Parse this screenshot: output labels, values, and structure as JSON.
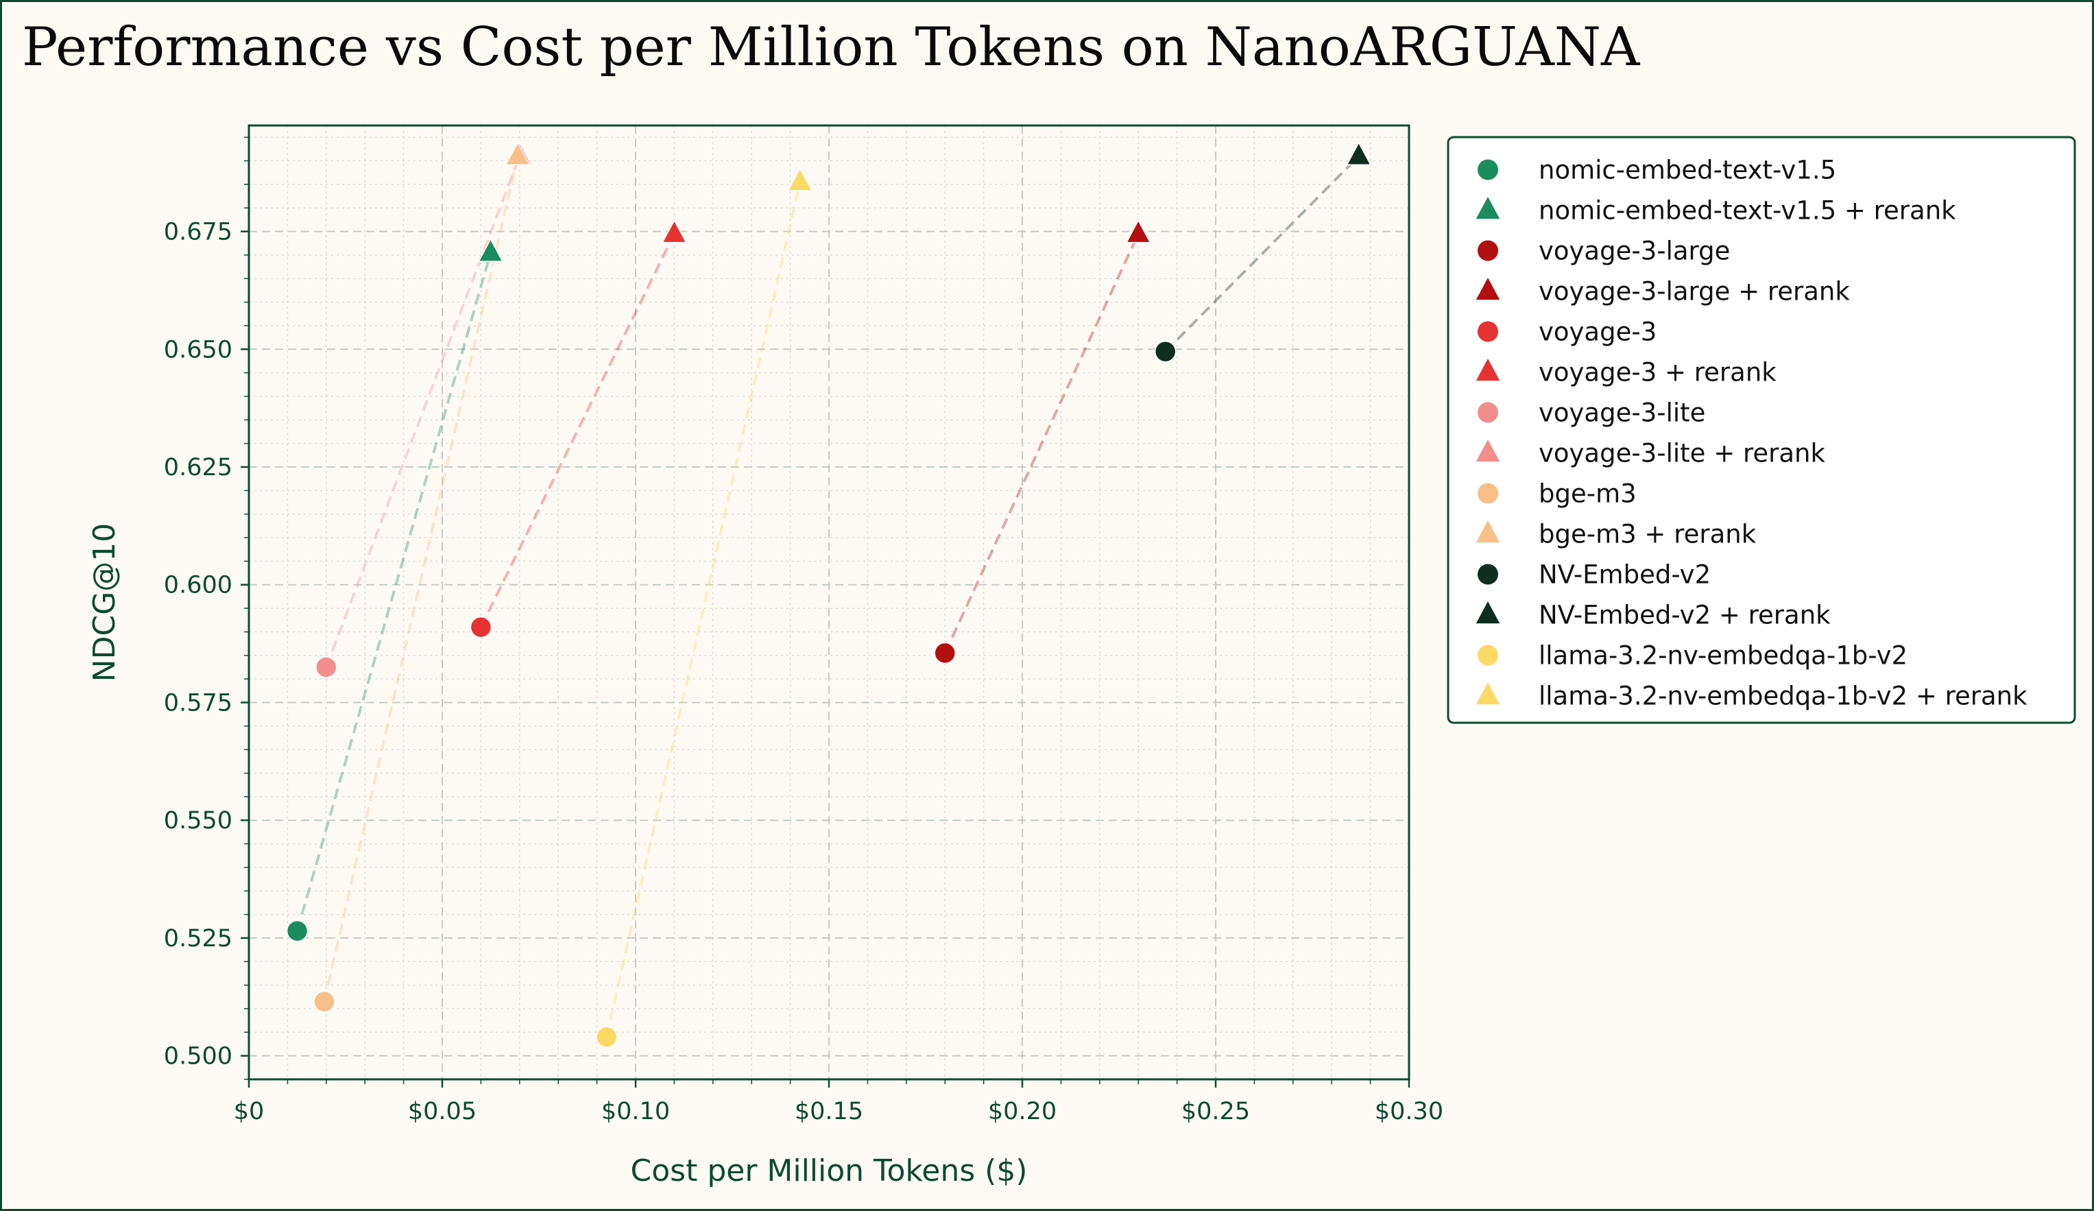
{
  "chart_data": {
    "type": "scatter",
    "title": "Performance vs Cost per Million Tokens on NanoARGUANA",
    "xlabel": "Cost per Million Tokens ($)",
    "ylabel": "NDCG@10",
    "xlim": [
      0,
      0.3
    ],
    "ylim": [
      0.495,
      0.6975
    ],
    "x_ticks": [
      {
        "value": 0,
        "label": "$0"
      },
      {
        "value": 0.05,
        "label": "$0.05"
      },
      {
        "value": 0.1,
        "label": "$0.10"
      },
      {
        "value": 0.15,
        "label": "$0.15"
      },
      {
        "value": 0.2,
        "label": "$0.20"
      },
      {
        "value": 0.25,
        "label": "$0.25"
      },
      {
        "value": 0.3,
        "label": "$0.30"
      }
    ],
    "y_ticks": [
      {
        "value": 0.5,
        "label": "0.500"
      },
      {
        "value": 0.525,
        "label": "0.525"
      },
      {
        "value": 0.55,
        "label": "0.550"
      },
      {
        "value": 0.575,
        "label": "0.575"
      },
      {
        "value": 0.6,
        "label": "0.600"
      },
      {
        "value": 0.625,
        "label": "0.625"
      },
      {
        "value": 0.65,
        "label": "0.650"
      },
      {
        "value": 0.675,
        "label": "0.675"
      }
    ],
    "grid": true,
    "legend_position": "outside-right",
    "series": [
      {
        "name": "nomic-embed-text-v1.5",
        "marker": "circle",
        "color": "#1a8c5e",
        "x": 0.0125,
        "y": 0.5265
      },
      {
        "name": "nomic-embed-text-v1.5 + rerank",
        "marker": "triangle",
        "color": "#1a8c5e",
        "x": 0.0625,
        "y": 0.6705
      },
      {
        "name": "voyage-3-large",
        "marker": "circle",
        "color": "#b30f0f",
        "x": 0.18,
        "y": 0.5855
      },
      {
        "name": "voyage-3-large + rerank",
        "marker": "triangle",
        "color": "#b30f0f",
        "x": 0.23,
        "y": 0.6745
      },
      {
        "name": "voyage-3",
        "marker": "circle",
        "color": "#e63232",
        "x": 0.06,
        "y": 0.591
      },
      {
        "name": "voyage-3 + rerank",
        "marker": "triangle",
        "color": "#e63232",
        "x": 0.11,
        "y": 0.6745
      },
      {
        "name": "voyage-3-lite",
        "marker": "circle",
        "color": "#f28e8e",
        "x": 0.02,
        "y": 0.5825
      },
      {
        "name": "voyage-3-lite + rerank",
        "marker": "triangle",
        "color": "#f28e8e",
        "x": 0.07,
        "y": 0.691
      },
      {
        "name": "bge-m3",
        "marker": "circle",
        "color": "#f9bf8a",
        "x": 0.0195,
        "y": 0.5115
      },
      {
        "name": "bge-m3 + rerank",
        "marker": "triangle",
        "color": "#f9bf8a",
        "x": 0.0695,
        "y": 0.691
      },
      {
        "name": "NV-Embed-v2",
        "marker": "circle",
        "color": "#0f2e1f",
        "x": 0.237,
        "y": 0.6495
      },
      {
        "name": "NV-Embed-v2 + rerank",
        "marker": "triangle",
        "color": "#0f2e1f",
        "x": 0.287,
        "y": 0.691
      },
      {
        "name": "llama-3.2-nv-embedqa-1b-v2",
        "marker": "circle",
        "color": "#fcd965",
        "x": 0.0925,
        "y": 0.504
      },
      {
        "name": "llama-3.2-nv-embedqa-1b-v2 + rerank",
        "marker": "triangle",
        "color": "#fcd965",
        "x": 0.1425,
        "y": 0.6855
      }
    ],
    "connectors": [
      {
        "from": 0,
        "to": 1
      },
      {
        "from": 2,
        "to": 3
      },
      {
        "from": 4,
        "to": 5
      },
      {
        "from": 6,
        "to": 7
      },
      {
        "from": 8,
        "to": 9
      },
      {
        "from": 10,
        "to": 11
      },
      {
        "from": 12,
        "to": 13
      }
    ]
  }
}
